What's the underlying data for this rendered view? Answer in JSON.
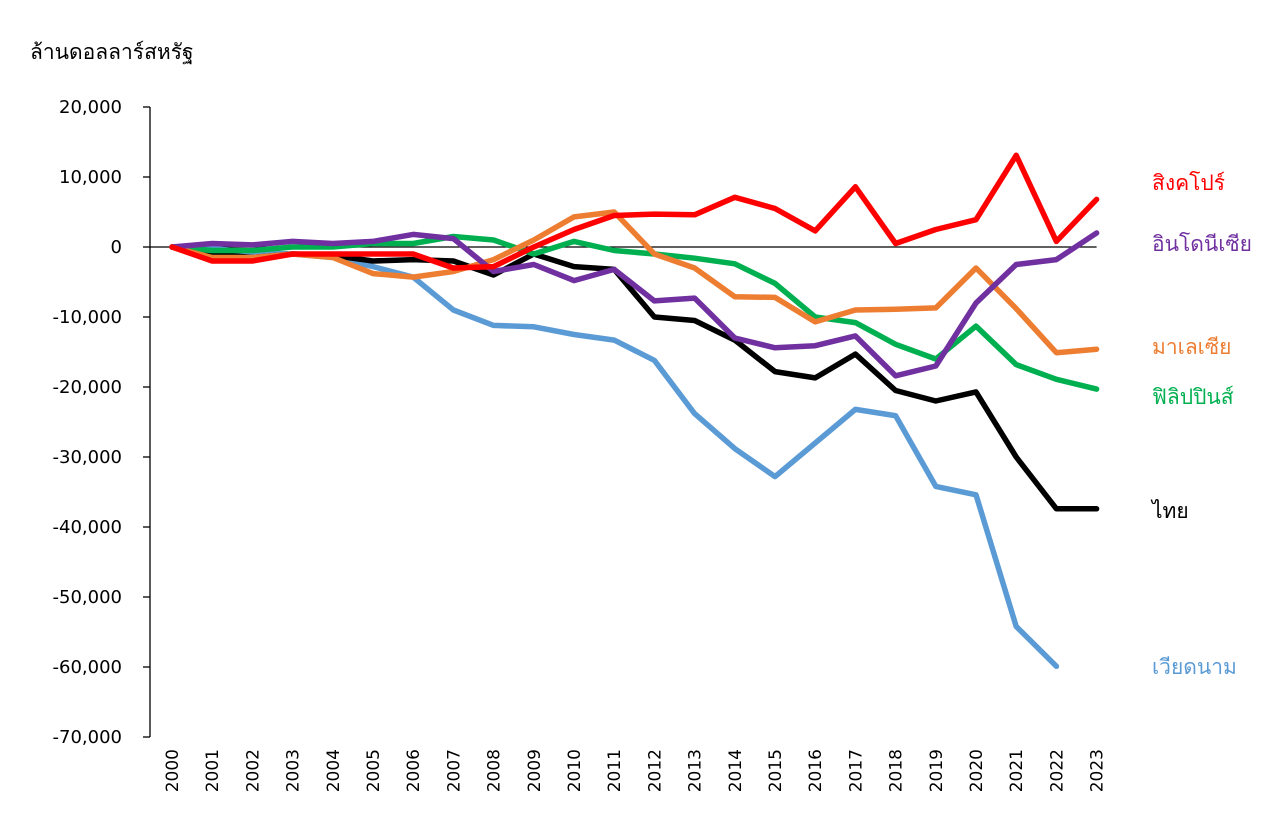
{
  "chart_data": {
    "type": "line",
    "ylabel": "ล้านดอลลาร์สหรัฐ",
    "xlabel": "",
    "ylim": [
      -70000,
      20000
    ],
    "yticks": [
      20000,
      10000,
      0,
      -10000,
      -20000,
      -30000,
      -40000,
      -50000,
      -60000,
      -70000
    ],
    "ytick_labels": [
      "20,000",
      "10,000",
      "0",
      "-10,000",
      "-20,000",
      "-30,000",
      "-40,000",
      "-50,000",
      "-60,000",
      "-70,000"
    ],
    "x": [
      "2000",
      "2001",
      "2002",
      "2003",
      "2004",
      "2005",
      "2006",
      "2007",
      "2008",
      "2009",
      "2010",
      "2011",
      "2012",
      "2013",
      "2014",
      "2015",
      "2016",
      "2017",
      "2018",
      "2019",
      "2020",
      "2021",
      "2022",
      "2023"
    ],
    "legend": "labels at line ends",
    "series": [
      {
        "name": "เวียดนาม",
        "color": "#5b9bd5",
        "values": [
          0,
          -200,
          -800,
          -1000,
          -1500,
          -2800,
          -4300,
          -9000,
          -11200,
          -11400,
          -12500,
          -13300,
          -16200,
          -23800,
          -28800,
          -32800,
          -28000,
          -23200,
          -24100,
          -34200,
          -35400,
          -54200,
          -59900,
          null
        ]
      },
      {
        "name": "ไทย",
        "color": "#000000",
        "values": [
          0,
          -1000,
          -1500,
          -1000,
          -1200,
          -2000,
          -1800,
          -2000,
          -4000,
          -1000,
          -2800,
          -3200,
          -10000,
          -10500,
          -13300,
          -17800,
          -18700,
          -15300,
          -20500,
          -22000,
          -20700,
          -30000,
          -37400,
          -37400
        ]
      },
      {
        "name": "ฟิลิปปินส์",
        "color": "#00b050",
        "values": [
          0,
          -500,
          -500,
          0,
          0,
          500,
          500,
          1500,
          1000,
          -1000,
          800,
          -500,
          -1000,
          -1600,
          -2400,
          -5200,
          -10000,
          -10800,
          -13900,
          -16000,
          -11300,
          -16800,
          -18900,
          -20300
        ]
      },
      {
        "name": "มาเลเซีย",
        "color": "#ed7d31",
        "values": [
          0,
          -1500,
          -1500,
          -1000,
          -1500,
          -3800,
          -4300,
          -3500,
          -1800,
          1000,
          4300,
          5000,
          -1000,
          -3000,
          -7100,
          -7200,
          -10700,
          -9000,
          -8900,
          -8700,
          -3000,
          -8800,
          -15100,
          -14600
        ]
      },
      {
        "name": "อินโดนีเซีย",
        "color": "#7030a0",
        "values": [
          0,
          500,
          300,
          800,
          500,
          800,
          1800,
          1200,
          -3500,
          -2500,
          -4800,
          -3200,
          -7700,
          -7300,
          -13000,
          -14400,
          -14100,
          -12700,
          -18400,
          -17000,
          -8000,
          -2500,
          -1800,
          2000
        ]
      },
      {
        "name": "สิงคโปร์",
        "color": "#ff0000",
        "values": [
          0,
          -2000,
          -2000,
          -1000,
          -1000,
          -1000,
          -1000,
          -3000,
          -2800,
          0,
          2500,
          4500,
          4700,
          4600,
          7100,
          5500,
          2300,
          8600,
          500,
          2500,
          3900,
          13100,
          800,
          6800
        ]
      }
    ]
  }
}
